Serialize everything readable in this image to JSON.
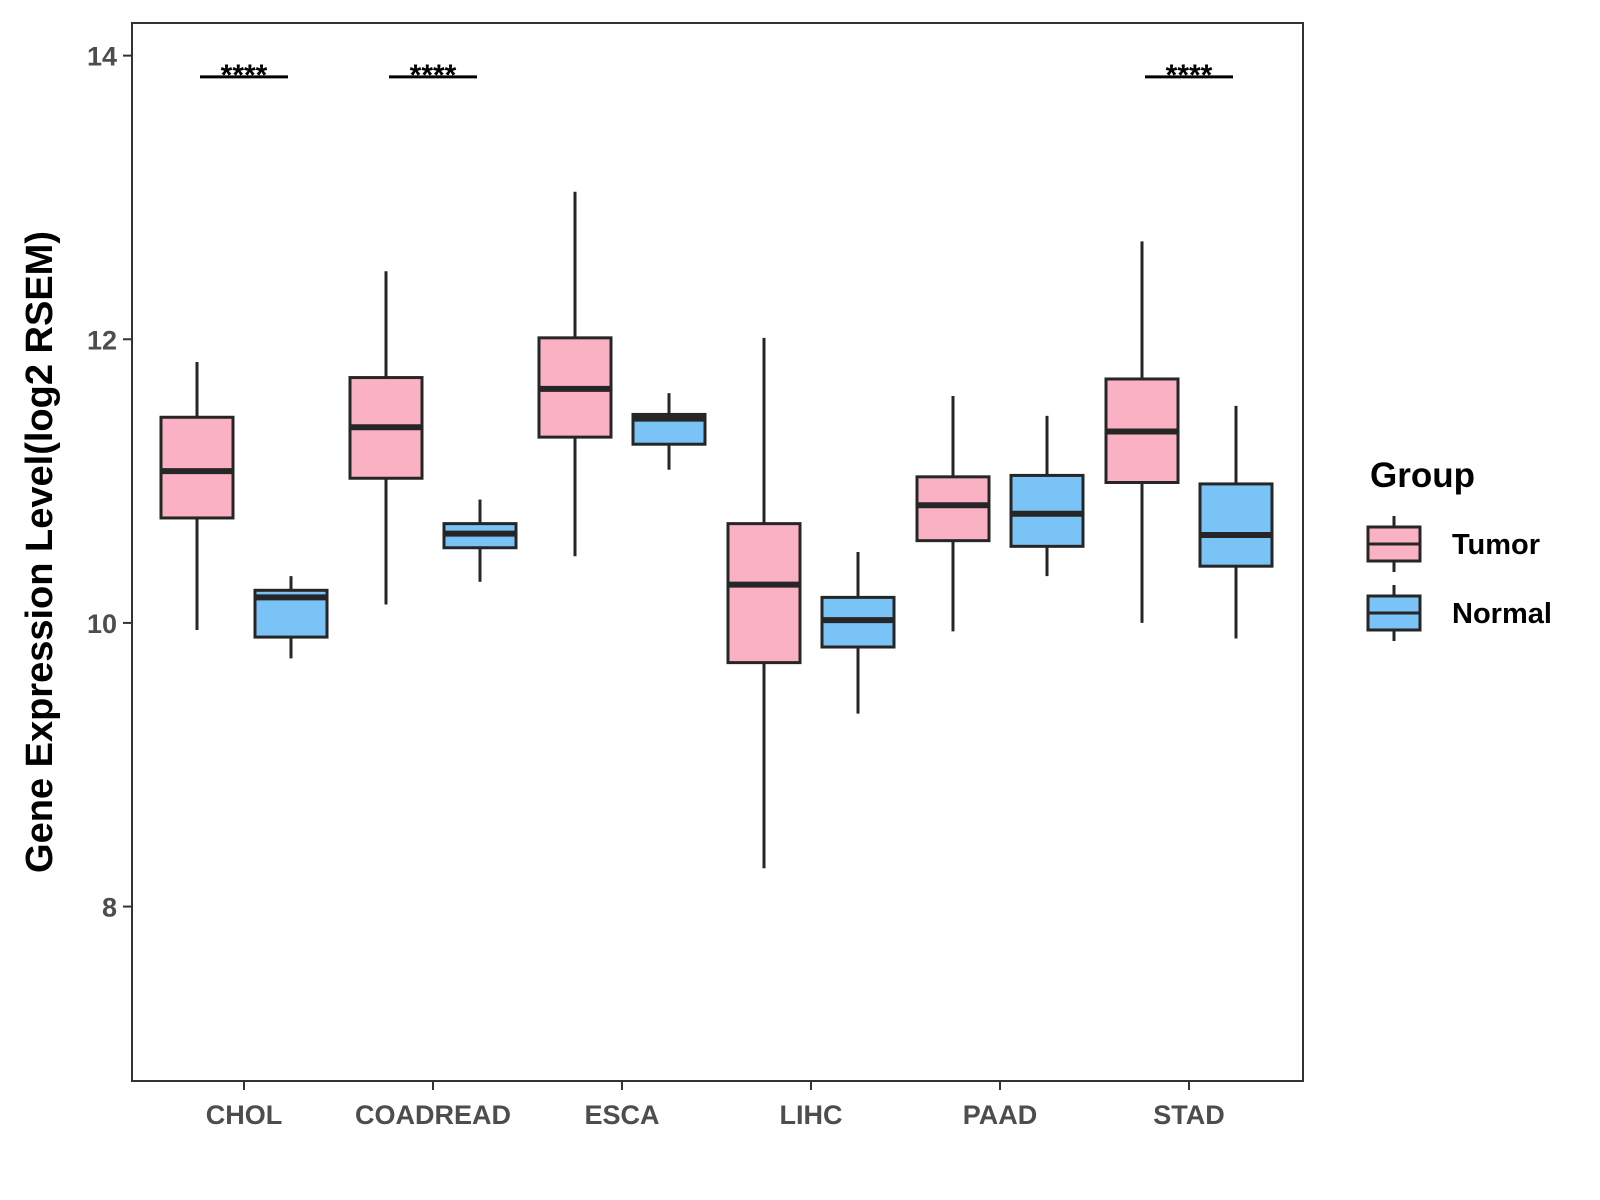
{
  "chart_data": {
    "type": "boxplot",
    "title": "",
    "xlabel": "",
    "ylabel": "Gene Expression Level(log2 RSEM)",
    "ylim": [
      6.77,
      14.23
    ],
    "yticks": [
      8,
      10,
      12,
      14
    ],
    "categories": [
      "CHOL",
      "COADREAD",
      "ESCA",
      "LIHC",
      "PAAD",
      "STAD"
    ],
    "legend": {
      "title": "Group",
      "position": "right"
    },
    "series": [
      {
        "name": "Tumor",
        "color": "#f9b1c3",
        "boxes": [
          {
            "min": 9.95,
            "q1": 10.74,
            "median": 11.07,
            "q3": 11.45,
            "max": 11.84
          },
          {
            "min": 10.13,
            "q1": 11.02,
            "median": 11.38,
            "q3": 11.73,
            "max": 12.48
          },
          {
            "min": 10.47,
            "q1": 11.31,
            "median": 11.65,
            "q3": 12.01,
            "max": 13.04
          },
          {
            "min": 8.27,
            "q1": 9.72,
            "median": 10.27,
            "q3": 10.7,
            "max": 12.01
          },
          {
            "min": 9.94,
            "q1": 10.58,
            "median": 10.83,
            "q3": 11.03,
            "max": 11.6
          },
          {
            "min": 10.0,
            "q1": 10.99,
            "median": 11.35,
            "q3": 11.72,
            "max": 12.69
          }
        ]
      },
      {
        "name": "Normal",
        "color": "#7ac3f6",
        "boxes": [
          {
            "min": 9.75,
            "q1": 9.9,
            "median": 10.18,
            "q3": 10.23,
            "max": 10.33
          },
          {
            "min": 10.29,
            "q1": 10.53,
            "median": 10.63,
            "q3": 10.7,
            "max": 10.87
          },
          {
            "min": 11.08,
            "q1": 11.26,
            "median": 11.44,
            "q3": 11.47,
            "max": 11.62
          },
          {
            "min": 9.36,
            "q1": 9.83,
            "median": 10.02,
            "q3": 10.18,
            "max": 10.5
          },
          {
            "min": 10.33,
            "q1": 10.54,
            "median": 10.77,
            "q3": 11.04,
            "max": 11.46
          },
          {
            "min": 9.89,
            "q1": 10.4,
            "median": 10.62,
            "q3": 10.98,
            "max": 11.53
          }
        ]
      }
    ],
    "significance": [
      {
        "category": "CHOL",
        "label": "****",
        "y": 13.85
      },
      {
        "category": "COADREAD",
        "label": "****",
        "y": 13.85
      },
      {
        "category": "STAD",
        "label": "****",
        "y": 13.85
      }
    ]
  }
}
